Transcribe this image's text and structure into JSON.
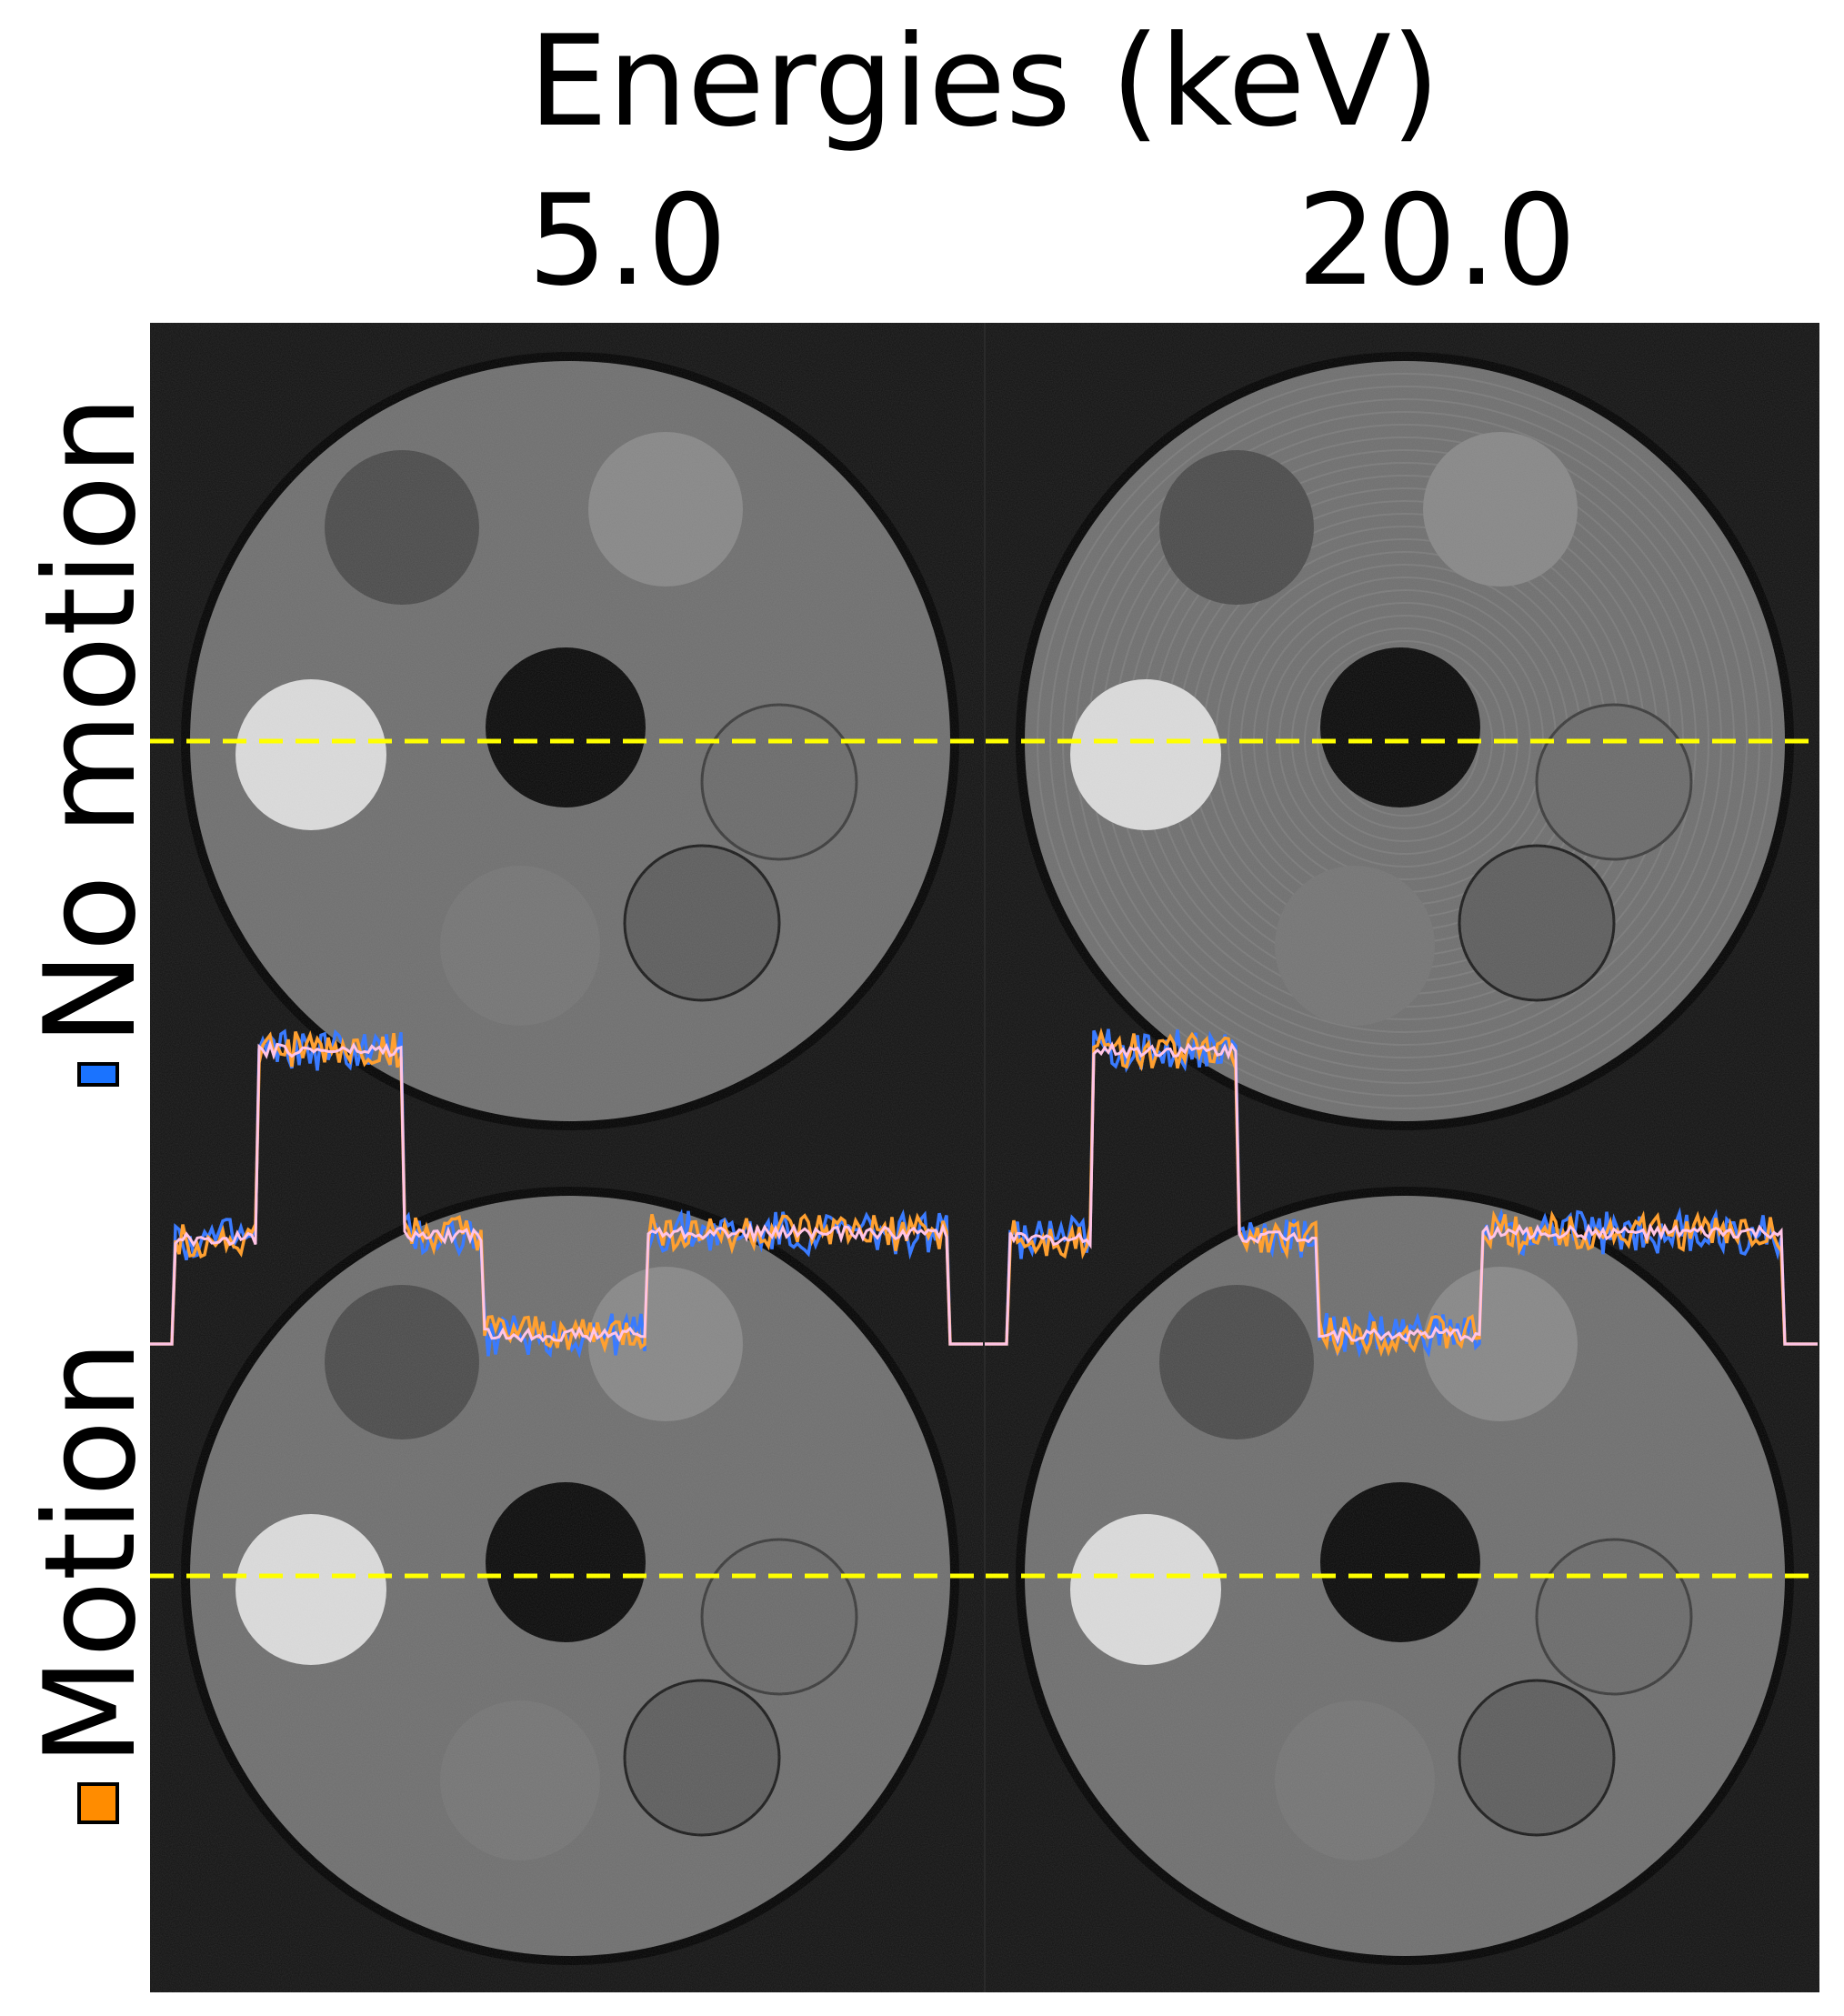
{
  "header": {
    "title": "Energies (keV)",
    "columns": [
      "5.0",
      "20.0"
    ]
  },
  "rows": [
    {
      "label": "No motion",
      "swatch_color": "#1a73ff"
    },
    {
      "label": "Motion",
      "swatch_color": "#ff8c00"
    }
  ],
  "colors": {
    "background": "#111111",
    "phantom": "#6e6e6e",
    "profile_line": "#ffff00",
    "no_motion_profile": "#3a7bff",
    "motion_profile": "#ffa030",
    "reference_profile": "#ffc4e6"
  }
}
